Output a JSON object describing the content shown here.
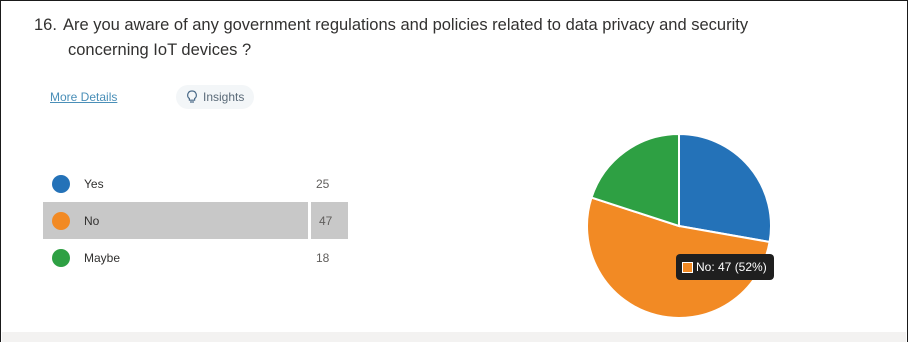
{
  "question": {
    "number": "16.",
    "line1": "Are you aware of any government regulations and policies related to data privacy and security",
    "line2": "concerning IoT devices ?"
  },
  "links": {
    "more_details": "More Details"
  },
  "buttons": {
    "insights": "Insights",
    "insights_icon": "lightbulb-icon"
  },
  "legend": [
    {
      "label": "Yes",
      "count": "25",
      "color": "#2472b8"
    },
    {
      "label": "No",
      "count": "47",
      "color": "#f28a24"
    },
    {
      "label": "Maybe",
      "count": "18",
      "color": "#2ea043"
    }
  ],
  "tooltip": {
    "text": "No: 47 (52%)"
  },
  "chart_data": {
    "type": "pie",
    "categories": [
      "Yes",
      "No",
      "Maybe"
    ],
    "values": [
      25,
      47,
      18
    ],
    "colors": [
      "#2472b8",
      "#f28a24",
      "#2ea043"
    ],
    "highlighted": "No",
    "title": ""
  }
}
